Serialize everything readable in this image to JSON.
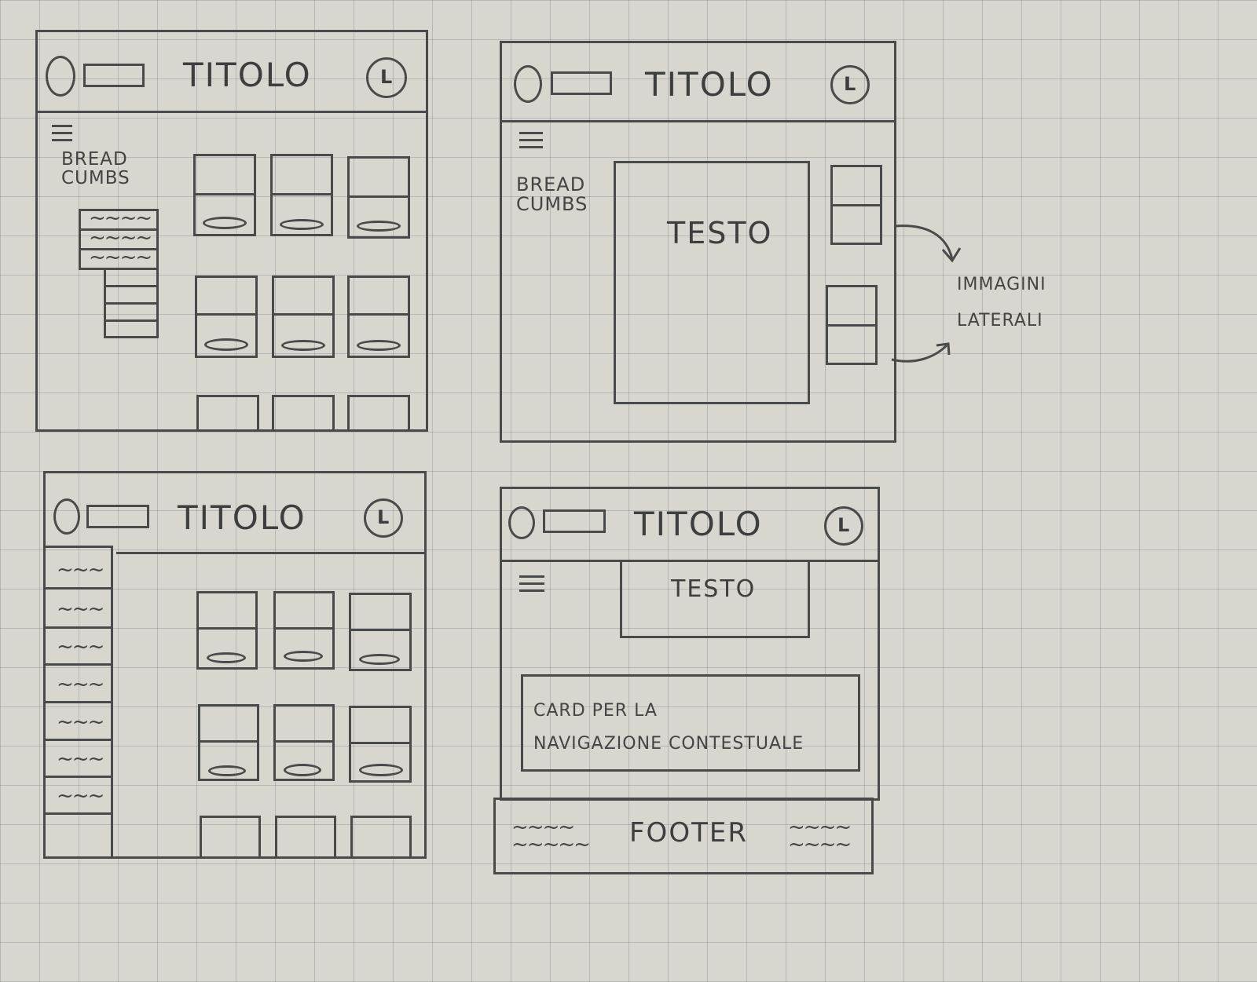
{
  "wireframes": [
    {
      "title": "TITOLO",
      "avatar": "L",
      "breadcrumbs": "BREAD\nCUMBS"
    },
    {
      "title": "TITOLO",
      "avatar": "L",
      "breadcrumbs": "BREAD\nCUMBS",
      "main_text": "TESTO"
    },
    {
      "title": "TITOLO",
      "avatar": "L"
    },
    {
      "title": "TITOLO",
      "avatar": "L",
      "main_text": "TESTO",
      "card_text": "CARD PER LA\nNAVIGAZIONE CONTESTUALE",
      "footer": "FOOTER"
    }
  ],
  "annotation": "IMMAGINI\nLATERALI"
}
